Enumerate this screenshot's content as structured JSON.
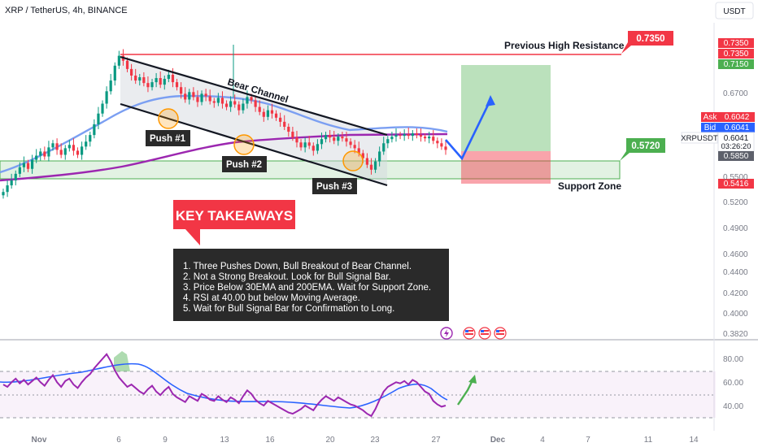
{
  "header": {
    "symbol_line": "XRP / TetherUS, 4h, BINANCE",
    "currency_button": "USDT"
  },
  "colors": {
    "resistance": "#f23645",
    "support": "#4caf50",
    "channel": "#131722",
    "ema30": "#7b9ff2",
    "ema200": "#9c27b0",
    "rsi": "#9c27b0",
    "rsi_ma": "#2962ff",
    "target_arrow": "#2962ff",
    "up": "#089981",
    "down": "#f23645",
    "takeaways_box": "#2a2a2a",
    "key_takeaways_banner": "#f23645"
  },
  "annotations": {
    "previous_high_resistance": "Previous High Resistance",
    "resistance_value": "0.7350",
    "support_zone": "Support Zone",
    "support_value": "0.5720",
    "bear_channel": "Bear Channel",
    "push1": "Push #1",
    "push2": "Push #2",
    "push3": "Push #3",
    "key_takeaways_title": "KEY TAKEAWAYS",
    "takeaways": [
      "1. Three Pushes Down, Bull Breakout of Bear Channel.",
      "2. Not a Strong Breakout. Look for Bull Signal Bar.",
      "3. Price Below 30EMA and 200EMA. Wait for Support Zone.",
      "4. RSI at 40.00 but below Moving Average.",
      "5. Wait for Bull Signal Bar for Confirmation to Long."
    ]
  },
  "price_axis": {
    "labels": [
      "0.6700",
      "0.5500",
      "0.5200",
      "0.4900",
      "0.4600",
      "0.4400",
      "0.4200",
      "0.4000",
      "0.3820"
    ],
    "tags": {
      "t1": "0.7350",
      "t2": "0.7350",
      "t3": "0.7150",
      "ask_label": "Ask",
      "ask_value": "0.6042",
      "bid_label": "Bid",
      "bid_value": "0.6041",
      "symbol": "XRPUSDT",
      "last_price": "0.6041",
      "countdown": "03:26:20",
      "t_grey": "0.5850",
      "t_bottom": "0.5416"
    }
  },
  "rsi_axis": {
    "labels": [
      "80.00",
      "60.00",
      "40.00"
    ]
  },
  "date_axis": [
    "Nov",
    "6",
    "9",
    "13",
    "16",
    "20",
    "23",
    "27",
    "Dec",
    "4",
    "7",
    "11",
    "14"
  ],
  "chart_data": [
    {
      "type": "candlestick",
      "title": "XRP / TetherUS, 4h, BINANCE",
      "x_ticks": [
        "Nov",
        "6",
        "9",
        "13",
        "16",
        "20",
        "23",
        "27",
        "Dec",
        "4",
        "7",
        "11",
        "14"
      ],
      "ylim": [
        0.374,
        0.758
      ],
      "series": [
        {
          "name": "Price",
          "values": [
            0.553,
            0.561,
            0.567,
            0.575,
            0.583,
            0.588,
            0.581,
            0.592,
            0.597,
            0.602,
            0.596,
            0.607,
            0.612,
            0.604,
            0.598,
            0.606,
            0.61,
            0.603,
            0.598,
            0.608,
            0.614,
            0.622,
            0.635,
            0.648,
            0.66,
            0.675,
            0.688,
            0.706,
            0.718,
            0.712,
            0.702,
            0.694,
            0.688,
            0.692,
            0.685,
            0.68,
            0.686,
            0.691,
            0.683,
            0.69,
            0.695,
            0.686,
            0.68,
            0.672,
            0.665,
            0.674,
            0.668,
            0.662,
            0.672,
            0.669,
            0.663,
            0.661,
            0.667,
            0.66,
            0.656,
            0.663,
            0.659,
            0.652,
            0.66,
            0.668,
            0.664,
            0.656,
            0.65,
            0.644,
            0.652,
            0.648,
            0.643,
            0.638,
            0.632,
            0.626,
            0.619,
            0.613,
            0.607,
            0.613,
            0.609,
            0.603,
            0.611,
            0.617,
            0.622,
            0.619,
            0.615,
            0.62,
            0.618,
            0.614,
            0.61,
            0.606,
            0.6,
            0.594,
            0.586,
            0.58,
            0.59,
            0.602,
            0.612,
            0.617,
            0.62,
            0.622,
            0.621,
            0.623,
            0.621,
            0.624,
            0.622,
            0.62,
            0.618,
            0.62,
            0.615,
            0.612,
            0.608,
            0.604
          ]
        },
        {
          "name": "30EMA",
          "values": []
        },
        {
          "name": "200EMA",
          "values": []
        }
      ],
      "levels": [
        {
          "name": "Previous High Resistance",
          "value": 0.735
        },
        {
          "name": "Support Zone",
          "range": [
            0.557,
            0.572
          ]
        }
      ]
    },
    {
      "type": "line",
      "title": "RSI",
      "ylim": [
        24,
        88
      ],
      "series": [
        {
          "name": "RSI",
          "values": [
            58,
            56,
            60,
            63,
            59,
            62,
            58,
            61,
            64,
            60,
            57,
            62,
            66,
            60,
            56,
            61,
            63,
            58,
            55,
            60,
            64,
            67,
            72,
            76,
            80,
            84,
            78,
            70,
            64,
            60,
            56,
            58,
            55,
            52,
            50,
            54,
            57,
            52,
            49,
            53,
            56,
            50,
            47,
            45,
            43,
            48,
            46,
            44,
            50,
            48,
            45,
            44,
            48,
            45,
            43,
            47,
            45,
            42,
            48,
            53,
            50,
            45,
            42,
            40,
            44,
            42,
            40,
            38,
            36,
            34,
            33,
            35,
            37,
            40,
            38,
            36,
            41,
            45,
            48,
            46,
            44,
            47,
            45,
            43,
            41,
            40,
            38,
            36,
            33,
            31,
            37,
            45,
            52,
            56,
            58,
            60,
            59,
            61,
            58,
            62,
            60,
            56,
            52,
            50,
            44,
            41,
            39,
            40
          ]
        },
        {
          "name": "RSI MA",
          "values": []
        }
      ],
      "bands": [
        30,
        70
      ],
      "midline": 50
    }
  ]
}
